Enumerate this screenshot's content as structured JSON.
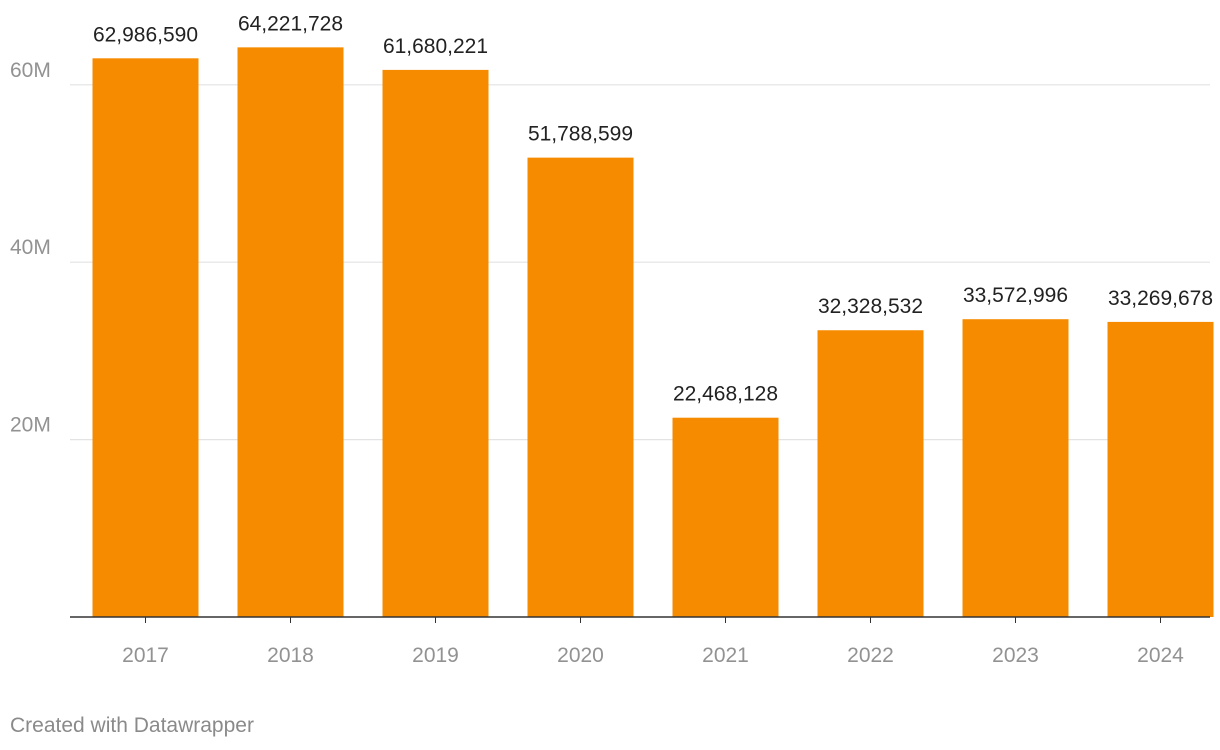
{
  "colors": {
    "bar": "#f78b00",
    "gridline": "#e3e3e3",
    "axis_line": "#333333",
    "tick_label": "#929292",
    "value_label": "#222222",
    "credit": "#8a8a8a"
  },
  "chart_data": {
    "type": "bar",
    "categories": [
      "2017",
      "2018",
      "2019",
      "2020",
      "2021",
      "2022",
      "2023",
      "2024"
    ],
    "values": [
      62986590,
      64221728,
      61680221,
      51788599,
      22468128,
      32328532,
      33572996,
      33269678
    ],
    "value_labels": [
      "62,986,590",
      "64,221,728",
      "61,680,221",
      "51,788,599",
      "22,468,128",
      "32,328,532",
      "33,572,996",
      "33,269,678"
    ],
    "y_ticks": [
      {
        "value": 20000000,
        "label": "20M"
      },
      {
        "value": 40000000,
        "label": "40M"
      },
      {
        "value": 60000000,
        "label": "60M"
      }
    ],
    "ylim": [
      0,
      70000000
    ],
    "grid": true,
    "legend": "none",
    "title": "",
    "xlabel": "",
    "ylabel": ""
  },
  "footer": {
    "credit": "Created with Datawrapper"
  }
}
